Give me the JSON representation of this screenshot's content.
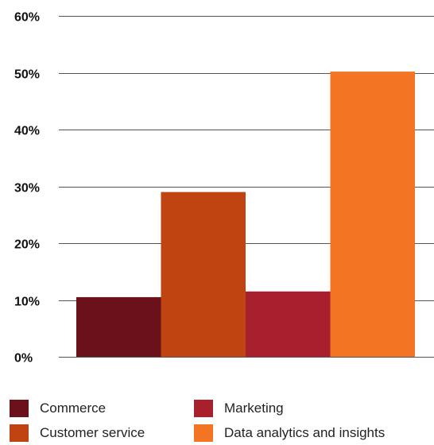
{
  "chart_data": {
    "type": "bar",
    "categories": [
      "Commerce",
      "Customer service",
      "Marketing",
      "Data analytics and insights"
    ],
    "values": [
      10.5,
      29,
      11.5,
      50.2
    ],
    "colors": [
      "#6b111c",
      "#c04312",
      "#a81f2e",
      "#f37423"
    ],
    "ylim": [
      0,
      60
    ],
    "yticks": [
      0,
      10,
      20,
      30,
      40,
      50,
      60
    ],
    "ytick_labels": [
      "0%",
      "10%",
      "20%",
      "30%",
      "40%",
      "50%",
      "60%"
    ],
    "title": "",
    "xlabel": "",
    "ylabel": "",
    "grid": true,
    "legend_position": "bottom"
  },
  "legend": {
    "items": [
      {
        "label": "Commerce",
        "color": "#6b111c"
      },
      {
        "label": "Customer service",
        "color": "#c04312"
      },
      {
        "label": "Marketing",
        "color": "#a81f2e"
      },
      {
        "label": "Data analytics and insights",
        "color": "#f37423"
      }
    ]
  }
}
